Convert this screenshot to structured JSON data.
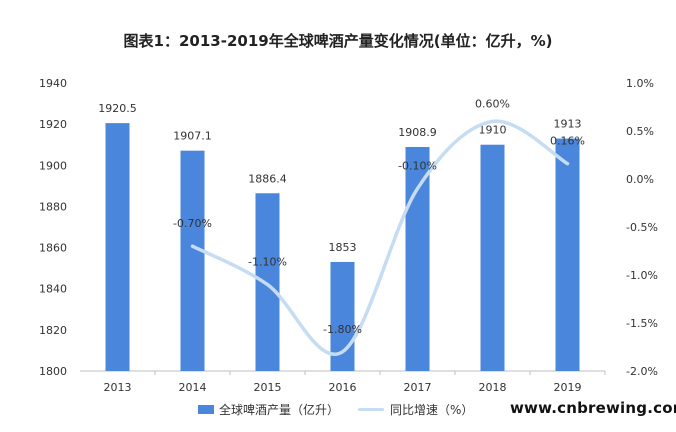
{
  "title": "图表1：2013-2019年全球啤酒产量变化情况(单位：亿升，%)",
  "site": "www.cnbrewing.com",
  "colors": {
    "bar": "#4a86dc",
    "line": "#c6dcf2",
    "axis": "#bfbfbf",
    "label": "#333333"
  },
  "chart_data": {
    "type": "bar",
    "categories": [
      "2013",
      "2014",
      "2015",
      "2016",
      "2017",
      "2018",
      "2019"
    ],
    "series": [
      {
        "name": "全球啤酒产量（亿升）",
        "type": "bar",
        "axis": "left",
        "values": [
          1920.5,
          1907.1,
          1886.4,
          1853,
          1908.9,
          1910,
          1913
        ],
        "labels": [
          "1920.5",
          "1907.1",
          "1886.4",
          "1853",
          "1908.9",
          "1910",
          "1913"
        ]
      },
      {
        "name": "同比增速（%）",
        "type": "line",
        "axis": "right",
        "values": [
          null,
          -0.7,
          -1.1,
          -1.8,
          -0.1,
          0.6,
          0.16
        ],
        "labels": [
          "",
          "-0.70%",
          "-1.10%",
          "-1.80%",
          "-0.10%",
          "0.60%",
          "0.16%"
        ]
      }
    ],
    "y_left": {
      "min": 1800,
      "max": 1940,
      "ticks": [
        "1800",
        "1820",
        "1840",
        "1860",
        "1880",
        "1900",
        "1920",
        "1940"
      ]
    },
    "y_right": {
      "min": -2.0,
      "max": 1.0,
      "ticks": [
        "-2.0%",
        "-1.5%",
        "-1.0%",
        "-0.5%",
        "0.0%",
        "0.5%",
        "1.0%"
      ]
    },
    "legend_position": "bottom-left",
    "grid": false
  }
}
